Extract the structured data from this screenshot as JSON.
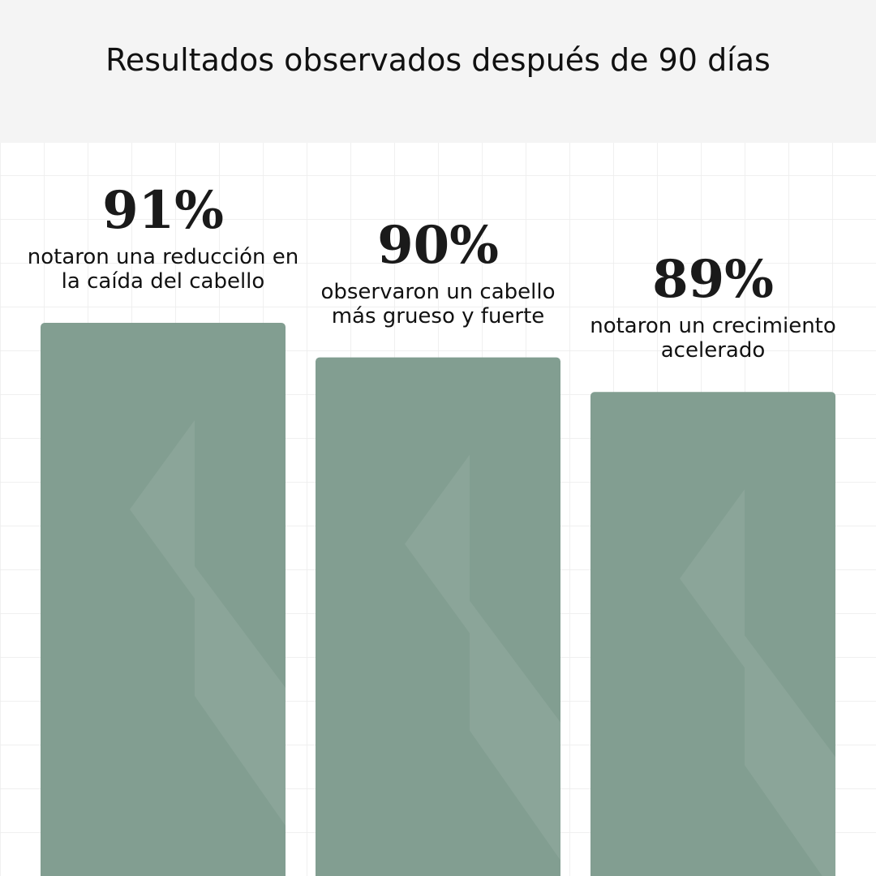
{
  "chart_data": {
    "type": "bar",
    "title": "Resultados observados después de 90 días",
    "categories": [
      "notaron una reducción en la caída del cabello",
      "observaron un cabello más grueso y fuerte",
      "notaron un crecimiento acelerado"
    ],
    "values": [
      91,
      90,
      89
    ],
    "value_labels": [
      "91%",
      "90%",
      "89%"
    ],
    "color": "#829e91",
    "ylim": [
      75,
      91
    ]
  }
}
